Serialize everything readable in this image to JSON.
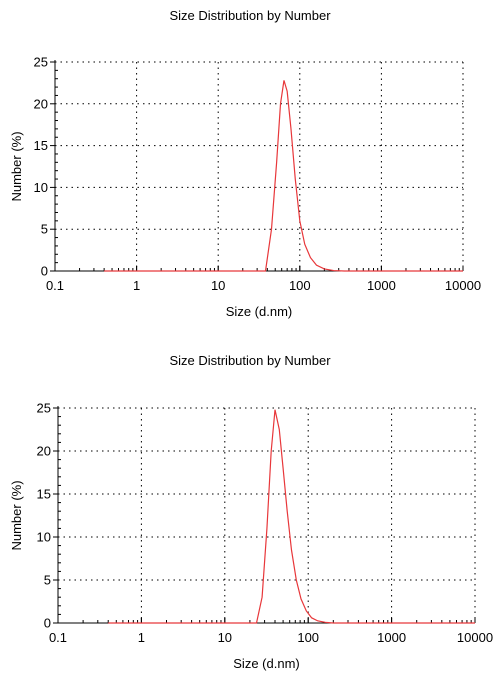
{
  "chart_data": [
    {
      "type": "line",
      "title": "Size Distribution by Number",
      "xlabel": "Size (d.nm)",
      "ylabel": "Number (%)",
      "x_scale": "log",
      "xlim": [
        0.1,
        10000
      ],
      "ylim": [
        0,
        25
      ],
      "x_ticks": [
        "0.1",
        "1",
        "10",
        "100",
        "1000",
        "10000"
      ],
      "y_ticks": [
        "0",
        "5",
        "10",
        "15",
        "20",
        "25"
      ],
      "grid": true,
      "series": [
        {
          "color": "#e8373a",
          "x": [
            0.4,
            10,
            25,
            38,
            45,
            52,
            58,
            64,
            70,
            78,
            88,
            100,
            115,
            135,
            160,
            200,
            260,
            350,
            500,
            1000,
            10000
          ],
          "y": [
            0,
            0,
            0,
            0,
            5,
            13,
            20,
            22.8,
            21.5,
            17,
            11,
            6,
            3.2,
            1.6,
            0.7,
            0.25,
            0.05,
            0,
            0,
            0,
            0
          ]
        }
      ]
    },
    {
      "type": "line",
      "title": "Size Distribution by Number",
      "xlabel": "Size (d.nm)",
      "ylabel": "Number (%)",
      "x_scale": "log",
      "xlim": [
        0.1,
        10000
      ],
      "ylim": [
        0,
        25
      ],
      "x_ticks": [
        "0.1",
        "1",
        "10",
        "100",
        "1000",
        "10000"
      ],
      "y_ticks": [
        "0",
        "5",
        "10",
        "15",
        "20",
        "25"
      ],
      "grid": true,
      "series": [
        {
          "color": "#e8373a",
          "x": [
            0.4,
            10,
            20,
            24,
            28,
            32,
            36,
            40,
            45,
            50,
            56,
            63,
            72,
            82,
            95,
            110,
            130,
            160,
            200,
            300,
            1000,
            10000
          ],
          "y": [
            0,
            0,
            0,
            0,
            3,
            11,
            20,
            24.8,
            22.5,
            18,
            13,
            8.5,
            5,
            2.8,
            1.4,
            0.6,
            0.25,
            0.08,
            0,
            0,
            0,
            0
          ]
        }
      ]
    }
  ]
}
